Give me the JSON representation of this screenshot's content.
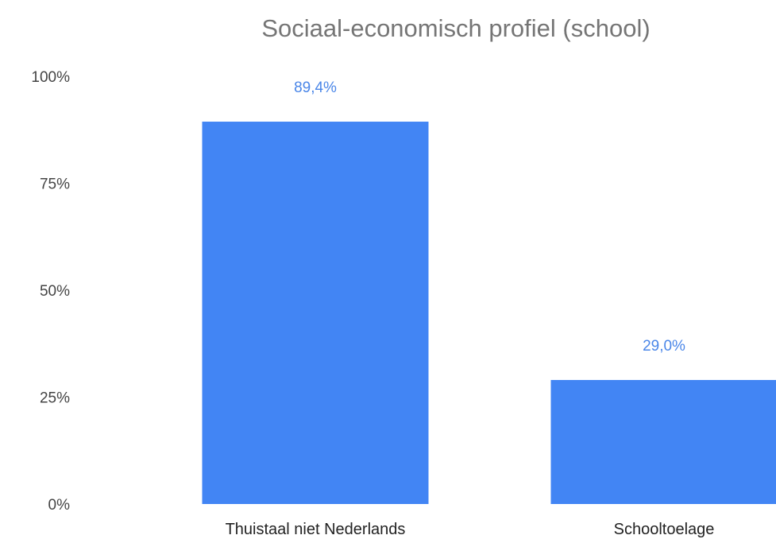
{
  "chart_data": {
    "type": "bar",
    "title": "Sociaal-economisch profiel (school)",
    "xlabel": "",
    "ylabel": "",
    "categories": [
      "Thuistaal niet Nederlands",
      "Schooltoelage"
    ],
    "values": [
      89.4,
      29.0
    ],
    "data_labels": [
      "89,4%",
      "29,0%"
    ],
    "ylim": [
      0,
      100
    ],
    "y_ticks": [
      0,
      25,
      50,
      75,
      100
    ],
    "y_tick_labels": [
      "0%",
      "25%",
      "50%",
      "75%",
      "100%"
    ],
    "grid": false,
    "legend": "none",
    "colors": {
      "bar": "#4285f4",
      "data_label": "#4a86e8",
      "title": "#757575"
    }
  }
}
